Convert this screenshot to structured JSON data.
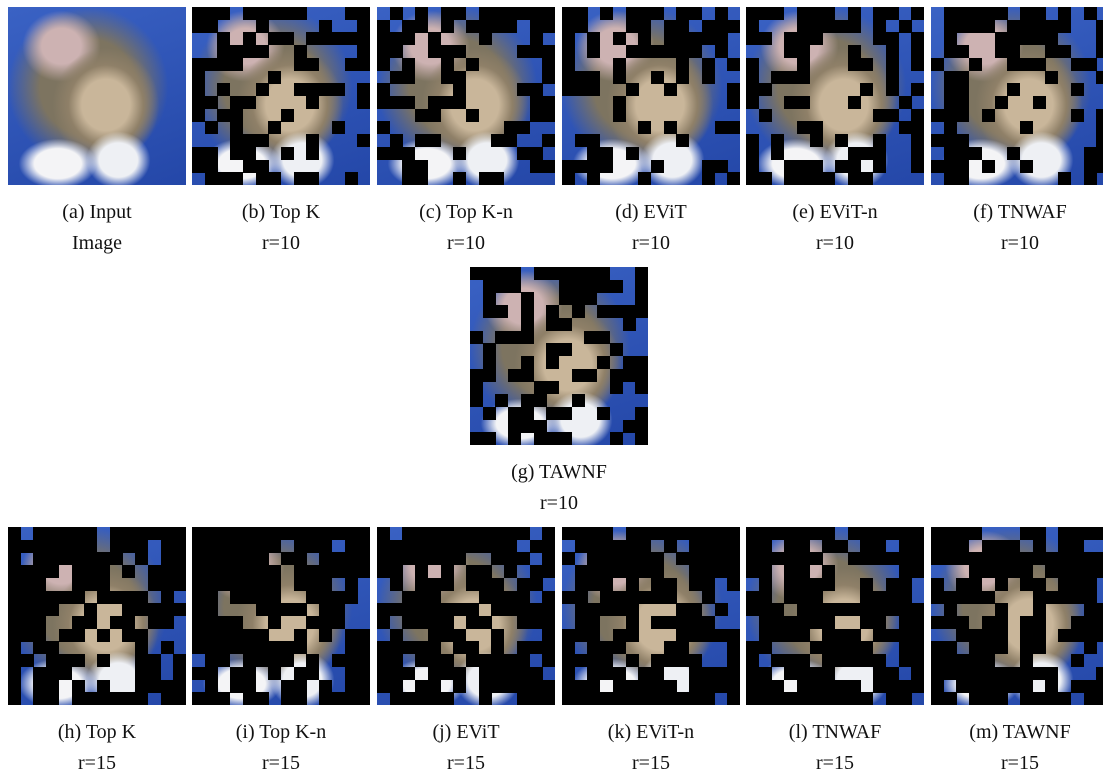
{
  "panels": [
    {
      "label": "(a) Input",
      "note": "Image"
    },
    {
      "label": "(b) Top K",
      "note": "r=10"
    },
    {
      "label": "(c) Top K-n",
      "note": "r=10"
    },
    {
      "label": "(d) EViT",
      "note": "r=10"
    },
    {
      "label": "(e) EViT-n",
      "note": "r=10"
    },
    {
      "label": "(f) TNWAF",
      "note": "r=10"
    },
    {
      "label": "(g) TAWNF",
      "note": "r=10"
    },
    {
      "label": "(h) Top K",
      "note": "r=15"
    },
    {
      "label": "(i) Top K-n",
      "note": "r=15"
    },
    {
      "label": "(j) EViT",
      "note": "r=15"
    },
    {
      "label": "(k) EViT-n",
      "note": "r=15"
    },
    {
      "label": "(l) TNWAF",
      "note": "r=15"
    },
    {
      "label": "(m) TAWNF",
      "note": "r=15"
    }
  ]
}
